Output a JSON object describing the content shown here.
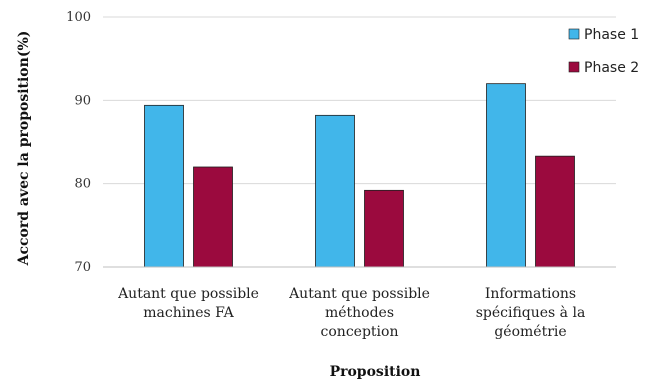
{
  "chart_data": {
    "type": "bar",
    "title": "",
    "xlabel": "Proposition",
    "ylabel": "Accord avec la proposition(%)",
    "ylim": [
      70,
      100
    ],
    "yticks": [
      70,
      80,
      90,
      100
    ],
    "grid": true,
    "legend_position": "top-right",
    "categories": [
      [
        "Autant que possible",
        "machines FA"
      ],
      [
        "Autant que possible",
        "méthodes",
        "conception"
      ],
      [
        "Informations",
        "spécifiques à la",
        "géométrie"
      ]
    ],
    "series": [
      {
        "name": "Phase 1",
        "color": "#41b6ea",
        "values": [
          89.4,
          88.2,
          92.0
        ]
      },
      {
        "name": "Phase 2",
        "color": "#9b0a3e",
        "values": [
          82.0,
          79.2,
          83.3
        ]
      }
    ]
  }
}
